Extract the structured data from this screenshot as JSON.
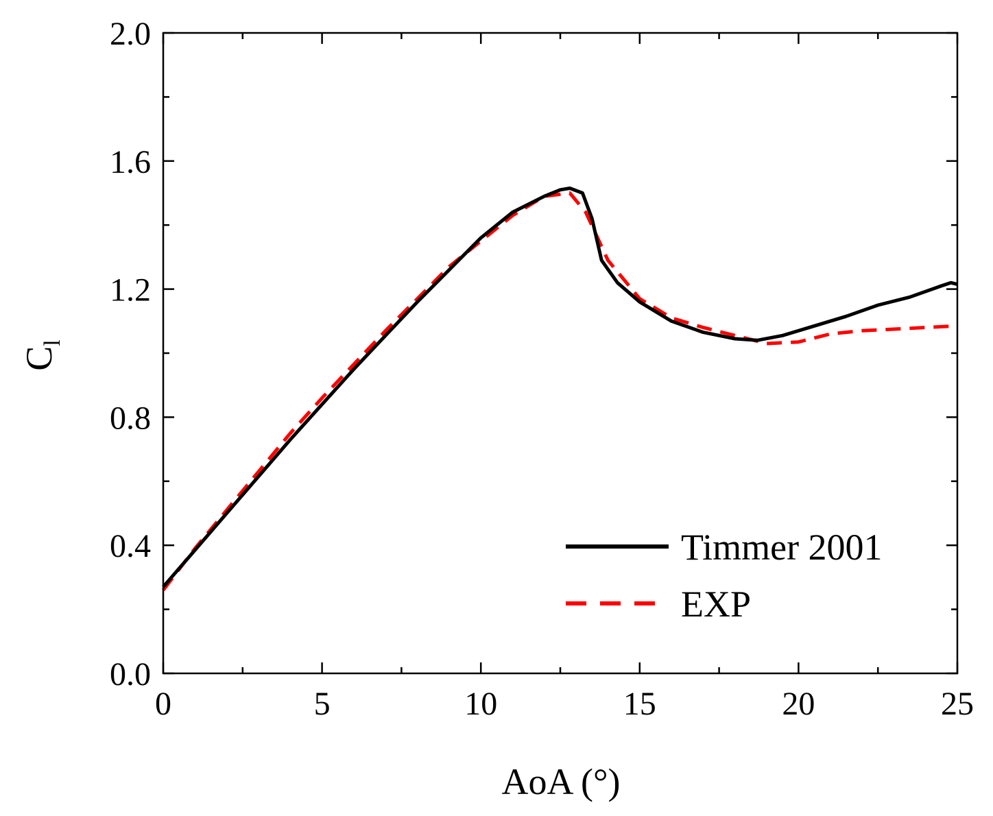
{
  "chart_data": {
    "type": "line",
    "title": "",
    "xlabel": "AoA (°)",
    "ylabel": {
      "main": "C",
      "sub": "l"
    },
    "xlim": [
      0,
      25
    ],
    "ylim": [
      0.0,
      2.0
    ],
    "xticks": [
      0,
      5,
      10,
      15,
      20,
      25
    ],
    "xtick_labels": [
      "0",
      "5",
      "10",
      "15",
      "20",
      "25"
    ],
    "yticks": [
      0.0,
      0.4,
      0.8,
      1.2,
      1.6,
      2.0
    ],
    "ytick_labels": [
      "0.0",
      "0.4",
      "0.8",
      "1.2",
      "1.6",
      "2.0"
    ],
    "grid": false,
    "legend_position": "bottom-right",
    "series": [
      {
        "name": "Timmer 2001",
        "color": "#000000",
        "style": "solid",
        "x": [
          0,
          1,
          2,
          3,
          4,
          5,
          6,
          7,
          8,
          9,
          10,
          11,
          12,
          12.5,
          12.8,
          13.2,
          13.5,
          13.8,
          14.3,
          15,
          16,
          17,
          18,
          18.7,
          19.5,
          20.5,
          21.5,
          22.5,
          23.5,
          24.5,
          24.8,
          25
        ],
        "y": [
          0.27,
          0.385,
          0.5,
          0.615,
          0.73,
          0.84,
          0.95,
          1.055,
          1.16,
          1.26,
          1.36,
          1.44,
          1.49,
          1.51,
          1.515,
          1.5,
          1.42,
          1.29,
          1.22,
          1.16,
          1.1,
          1.065,
          1.045,
          1.04,
          1.055,
          1.085,
          1.115,
          1.15,
          1.175,
          1.21,
          1.22,
          1.215
        ]
      },
      {
        "name": "EXP",
        "color": "#ff0000",
        "style": "dashed",
        "x": [
          0,
          1,
          2,
          3,
          4,
          5,
          6,
          7,
          8,
          9,
          10,
          11,
          12,
          12.8,
          13.3,
          14,
          15,
          16,
          17,
          18,
          19,
          20,
          21,
          22,
          23,
          24,
          25
        ],
        "y": [
          0.26,
          0.39,
          0.51,
          0.63,
          0.75,
          0.86,
          0.965,
          1.07,
          1.17,
          1.27,
          1.35,
          1.43,
          1.49,
          1.5,
          1.44,
          1.29,
          1.17,
          1.11,
          1.08,
          1.055,
          1.03,
          1.035,
          1.06,
          1.07,
          1.075,
          1.08,
          1.085
        ]
      }
    ]
  }
}
